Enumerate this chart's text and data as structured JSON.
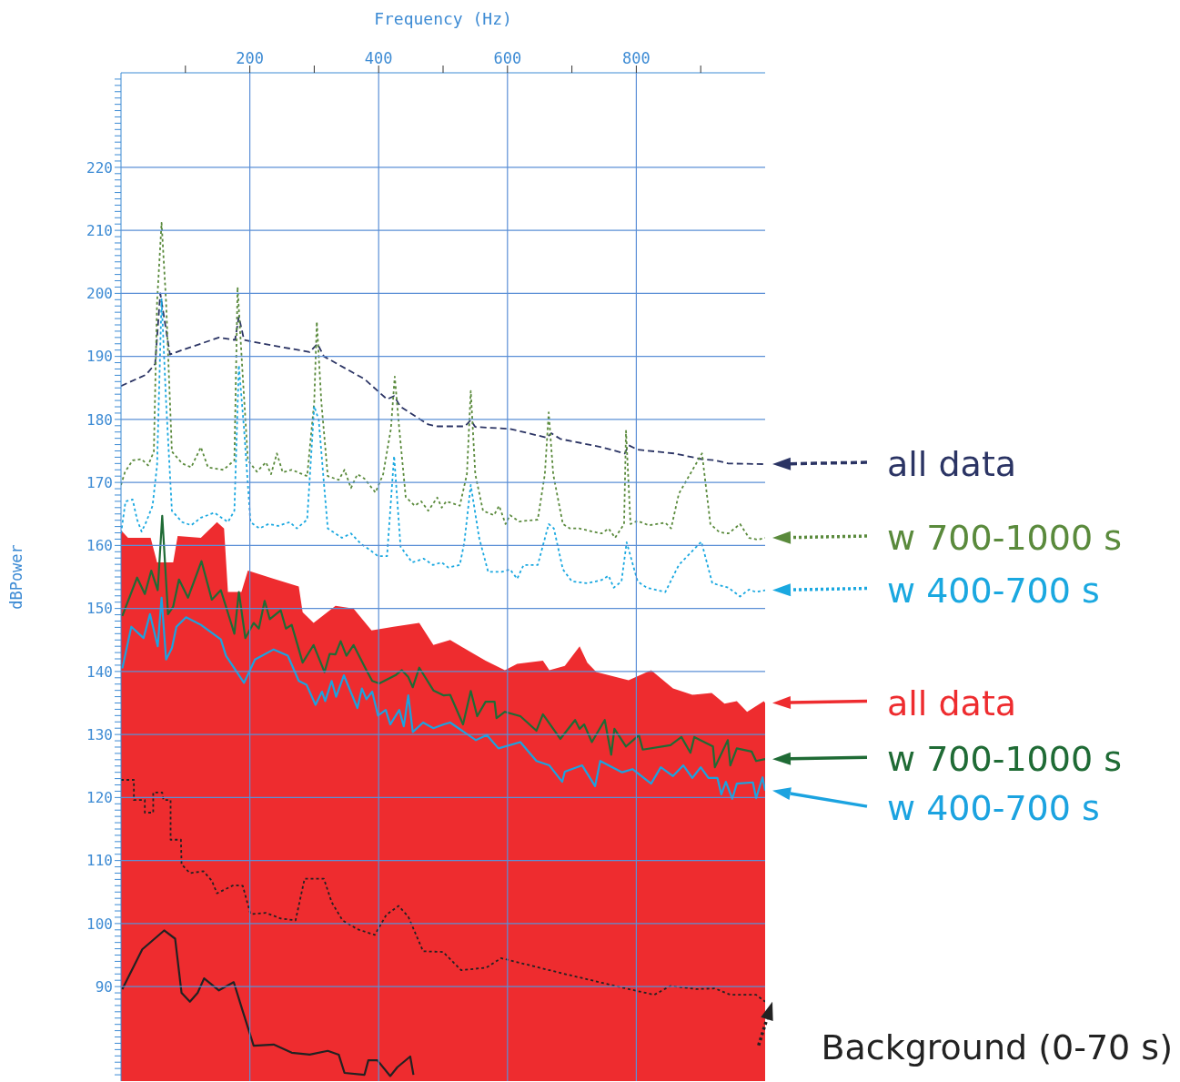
{
  "chart_data": {
    "type": "line",
    "legend": "right",
    "xlabel": "Frequency (Hz)",
    "ylabel": "dBPower",
    "xlim": [
      0,
      1000
    ],
    "ylim": [
      75,
      235
    ],
    "grid": true,
    "xticks": [
      {
        "value": 100,
        "label": null
      },
      200,
      {
        "value": 300,
        "label": null
      },
      400,
      {
        "value": 500,
        "label": null
      },
      600,
      {
        "value": 700,
        "label": null
      },
      800,
      {
        "value": 900,
        "label": null
      }
    ],
    "yticks": [
      {
        "value": 76,
        "label": null
      },
      {
        "value": 77,
        "label": null
      },
      {
        "value": 78,
        "label": null
      },
      {
        "value": 79,
        "label": null
      },
      {
        "value": 80,
        "label": null
      },
      {
        "value": 81,
        "label": null
      },
      {
        "value": 82,
        "label": null
      },
      {
        "value": 83,
        "label": null
      },
      {
        "value": 84,
        "label": null
      },
      {
        "value": 85,
        "label": null
      },
      {
        "value": 86,
        "label": null
      },
      {
        "value": 87,
        "label": null
      },
      {
        "value": 88,
        "label": null
      },
      {
        "value": 89,
        "label": null
      },
      90,
      {
        "value": 91,
        "label": null
      },
      {
        "value": 92,
        "label": null
      },
      {
        "value": 93,
        "label": null
      },
      {
        "value": 94,
        "label": null
      },
      {
        "value": 95,
        "label": null
      },
      {
        "value": 96,
        "label": null
      },
      {
        "value": 97,
        "label": null
      },
      {
        "value": 98,
        "label": null
      },
      {
        "value": 99,
        "label": null
      },
      100,
      {
        "value": 101,
        "label": null
      },
      {
        "value": 102,
        "label": null
      },
      {
        "value": 103,
        "label": null
      },
      {
        "value": 104,
        "label": null
      },
      {
        "value": 105,
        "label": null
      },
      {
        "value": 106,
        "label": null
      },
      {
        "value": 107,
        "label": null
      },
      {
        "value": 108,
        "label": null
      },
      {
        "value": 109,
        "label": null
      },
      110,
      {
        "value": 111,
        "label": null
      },
      {
        "value": 112,
        "label": null
      },
      {
        "value": 113,
        "label": null
      },
      {
        "value": 114,
        "label": null
      },
      {
        "value": 115,
        "label": null
      },
      {
        "value": 116,
        "label": null
      },
      {
        "value": 117,
        "label": null
      },
      {
        "value": 118,
        "label": null
      },
      {
        "value": 119,
        "label": null
      },
      120,
      {
        "value": 121,
        "label": null
      },
      {
        "value": 122,
        "label": null
      },
      {
        "value": 123,
        "label": null
      },
      {
        "value": 124,
        "label": null
      },
      {
        "value": 125,
        "label": null
      },
      {
        "value": 126,
        "label": null
      },
      {
        "value": 127,
        "label": null
      },
      {
        "value": 128,
        "label": null
      },
      {
        "value": 129,
        "label": null
      },
      130,
      {
        "value": 131,
        "label": null
      },
      {
        "value": 132,
        "label": null
      },
      {
        "value": 133,
        "label": null
      },
      {
        "value": 134,
        "label": null
      },
      {
        "value": 135,
        "label": null
      },
      {
        "value": 136,
        "label": null
      },
      {
        "value": 137,
        "label": null
      },
      {
        "value": 138,
        "label": null
      },
      {
        "value": 139,
        "label": null
      },
      140,
      {
        "value": 141,
        "label": null
      },
      {
        "value": 142,
        "label": null
      },
      {
        "value": 143,
        "label": null
      },
      {
        "value": 144,
        "label": null
      },
      {
        "value": 145,
        "label": null
      },
      {
        "value": 146,
        "label": null
      },
      {
        "value": 147,
        "label": null
      },
      {
        "value": 148,
        "label": null
      },
      {
        "value": 149,
        "label": null
      },
      150,
      {
        "value": 151,
        "label": null
      },
      {
        "value": 152,
        "label": null
      },
      {
        "value": 153,
        "label": null
      },
      {
        "value": 154,
        "label": null
      },
      {
        "value": 155,
        "label": null
      },
      {
        "value": 156,
        "label": null
      },
      {
        "value": 157,
        "label": null
      },
      {
        "value": 158,
        "label": null
      },
      {
        "value": 159,
        "label": null
      },
      160,
      {
        "value": 161,
        "label": null
      },
      {
        "value": 162,
        "label": null
      },
      {
        "value": 163,
        "label": null
      },
      {
        "value": 164,
        "label": null
      },
      {
        "value": 165,
        "label": null
      },
      {
        "value": 166,
        "label": null
      },
      {
        "value": 167,
        "label": null
      },
      {
        "value": 168,
        "label": null
      },
      {
        "value": 169,
        "label": null
      },
      170,
      {
        "value": 171,
        "label": null
      },
      {
        "value": 172,
        "label": null
      },
      {
        "value": 173,
        "label": null
      },
      {
        "value": 174,
        "label": null
      },
      {
        "value": 175,
        "label": null
      },
      {
        "value": 176,
        "label": null
      },
      {
        "value": 177,
        "label": null
      },
      {
        "value": 178,
        "label": null
      },
      {
        "value": 179,
        "label": null
      },
      180,
      {
        "value": 181,
        "label": null
      },
      {
        "value": 182,
        "label": null
      },
      {
        "value": 183,
        "label": null
      },
      {
        "value": 184,
        "label": null
      },
      {
        "value": 185,
        "label": null
      },
      {
        "value": 186,
        "label": null
      },
      {
        "value": 187,
        "label": null
      },
      {
        "value": 188,
        "label": null
      },
      {
        "value": 189,
        "label": null
      },
      190,
      {
        "value": 191,
        "label": null
      },
      {
        "value": 192,
        "label": null
      },
      {
        "value": 193,
        "label": null
      },
      {
        "value": 194,
        "label": null
      },
      {
        "value": 195,
        "label": null
      },
      {
        "value": 196,
        "label": null
      },
      {
        "value": 197,
        "label": null
      },
      {
        "value": 198,
        "label": null
      },
      {
        "value": 199,
        "label": null
      },
      200,
      {
        "value": 201,
        "label": null
      },
      {
        "value": 202,
        "label": null
      },
      {
        "value": 203,
        "label": null
      },
      {
        "value": 204,
        "label": null
      },
      {
        "value": 205,
        "label": null
      },
      {
        "value": 206,
        "label": null
      },
      {
        "value": 207,
        "label": null
      },
      {
        "value": 208,
        "label": null
      },
      {
        "value": 209,
        "label": null
      },
      210,
      {
        "value": 211,
        "label": null
      },
      {
        "value": 212,
        "label": null
      },
      {
        "value": 213,
        "label": null
      },
      {
        "value": 214,
        "label": null
      },
      {
        "value": 215,
        "label": null
      },
      {
        "value": 216,
        "label": null
      },
      {
        "value": 217,
        "label": null
      },
      {
        "value": 218,
        "label": null
      },
      {
        "value": 219,
        "label": null
      },
      220,
      {
        "value": 221,
        "label": null
      },
      {
        "value": 222,
        "label": null
      },
      {
        "value": 223,
        "label": null
      },
      {
        "value": 224,
        "label": null
      },
      {
        "value": 225,
        "label": null
      },
      {
        "value": 226,
        "label": null
      },
      {
        "value": 227,
        "label": null
      },
      {
        "value": 228,
        "label": null
      },
      {
        "value": 229,
        "label": null
      },
      {
        "value": 230,
        "label": null
      },
      {
        "value": 231,
        "label": null
      },
      {
        "value": 232,
        "label": null
      },
      {
        "value": 233,
        "label": null
      },
      {
        "value": 234,
        "label": null
      }
    ],
    "series": [
      {
        "name": "all data",
        "type": "area",
        "color": "#ee2c2f",
        "x": [
          0,
          11,
          46,
          56,
          81,
          88,
          124,
          149,
          160,
          166,
          187,
          197,
          237,
          276,
          282,
          299,
          333,
          361,
          389,
          423,
          463,
          485,
          511,
          541,
          566,
          596,
          615,
          655,
          665,
          689,
          712,
          724,
          738,
          788,
          823,
          857,
          887,
          917,
          937,
          956,
          972,
          998,
          1000
        ],
        "values": [
          162.4,
          161.2,
          161.2,
          157.3,
          157.3,
          161.5,
          161.2,
          163.7,
          162.7,
          152.6,
          152.6,
          156,
          154.7,
          153.5,
          149.4,
          147.7,
          150.4,
          150,
          146.5,
          147.1,
          147.7,
          144.2,
          145,
          143.2,
          141.7,
          140.2,
          141.2,
          141.7,
          140.2,
          140.9,
          144,
          141.4,
          139.9,
          138.6,
          140.2,
          137.3,
          136.3,
          136.6,
          134.9,
          135.3,
          133.6,
          135.3,
          135
        ]
      },
      {
        "name": "all data",
        "line_style": "dashed",
        "color": "#2b3464",
        "x": [
          0,
          39,
          53,
          61,
          76,
          95,
          152,
          177,
          183,
          191,
          237,
          293,
          305,
          315,
          378,
          413,
          424,
          434,
          477,
          491,
          534,
          543,
          550,
          604,
          661,
          668,
          682,
          746,
          782,
          788,
          802,
          859,
          901,
          923,
          943,
          1000
        ],
        "values": [
          185.3,
          187.1,
          188.8,
          200,
          190.3,
          191,
          193,
          192.6,
          196.3,
          192.6,
          191.7,
          190.7,
          192,
          190,
          186.4,
          183.2,
          183.7,
          182,
          179.2,
          178.9,
          178.9,
          179.9,
          178.8,
          178.5,
          177.1,
          177.8,
          176.9,
          175.6,
          174.6,
          175.9,
          175.2,
          174.6,
          173.7,
          173.5,
          173,
          172.9
        ]
      },
      {
        "name": "w 700-1000 s",
        "line_style": "dotted",
        "color": "#5a8a3c",
        "x": [
          0,
          6,
          18,
          32,
          42,
          51,
          56,
          63,
          70,
          79,
          95,
          109,
          124,
          135,
          159,
          176,
          181,
          188,
          197,
          211,
          225,
          233,
          242,
          251,
          265,
          289,
          300,
          304,
          311,
          321,
          338,
          347,
          357,
          367,
          378,
          395,
          407,
          419,
          425,
          432,
          442,
          456,
          466,
          477,
          491,
          498,
          505,
          526,
          537,
          543,
          550,
          562,
          579,
          587,
          597,
          604,
          618,
          647,
          658,
          664,
          671,
          686,
          697,
          711,
          732,
          746,
          757,
          767,
          781,
          784,
          791,
          802,
          819,
          845,
          854,
          866,
          902,
          915,
          929,
          943,
          961,
          975,
          989,
          1000
        ],
        "values": [
          169.6,
          171.6,
          173.5,
          173.7,
          172.7,
          174.9,
          198.6,
          211.2,
          198.6,
          174.9,
          173,
          172.4,
          175.6,
          172.4,
          172,
          173.5,
          201,
          188.6,
          173.5,
          171.7,
          173.2,
          171.3,
          174.6,
          171.6,
          172,
          171,
          182.8,
          195.5,
          182.8,
          171,
          170.4,
          172,
          169.1,
          171.3,
          170.6,
          168.4,
          171.3,
          178.5,
          186.8,
          178.5,
          167.7,
          166.3,
          167,
          165.5,
          167.6,
          166,
          167,
          166.3,
          171.3,
          184.5,
          171.3,
          165.5,
          164.8,
          166.3,
          163.4,
          164.8,
          163.8,
          164.1,
          171.3,
          181.1,
          171.3,
          163.4,
          162.7,
          162.7,
          162.2,
          161.9,
          162.7,
          161.2,
          163.4,
          178.2,
          163.4,
          163.9,
          163.2,
          163.6,
          162.7,
          168.2,
          174.6,
          163.4,
          162.1,
          161.9,
          163.4,
          161.2,
          160.9,
          161.2
        ]
      },
      {
        "name": "w 400-700 s",
        "line_style": "dotted",
        "color": "#1aa8e0",
        "x": [
          0,
          7,
          18,
          25,
          32,
          39,
          49,
          56,
          63,
          70,
          79,
          95,
          109,
          124,
          145,
          166,
          176,
          183,
          191,
          201,
          215,
          229,
          244,
          262,
          273,
          289,
          300,
          307,
          315,
          321,
          343,
          357,
          373,
          385,
          399,
          413,
          424,
          434,
          452,
          470,
          484,
          498,
          508,
          526,
          533,
          543,
          556,
          570,
          591,
          604,
          615,
          625,
          647,
          664,
          672,
          686,
          700,
          724,
          746,
          757,
          765,
          777,
          785,
          791,
          802,
          816,
          845,
          866,
          901,
          918,
          943,
          961,
          975,
          986,
          1000
        ],
        "values": [
          161.9,
          167,
          167.3,
          164.1,
          162.2,
          163.7,
          166.3,
          172.7,
          199.1,
          182.8,
          165.5,
          163.7,
          163.2,
          164.4,
          165.2,
          163.7,
          165.5,
          188.6,
          178.5,
          163.7,
          162.7,
          163.4,
          163.1,
          163.7,
          162.7,
          164.1,
          182.1,
          179.9,
          169.9,
          162.7,
          161.2,
          161.9,
          160.2,
          159.4,
          158.3,
          158.3,
          174.2,
          159.8,
          157.3,
          157.9,
          156.9,
          157.3,
          156.5,
          156.9,
          160.5,
          169.6,
          161.2,
          155.8,
          155.8,
          156.2,
          154.7,
          156.9,
          156.9,
          163.4,
          162.7,
          156.2,
          154.3,
          154,
          154.5,
          155.2,
          153.3,
          154.3,
          160.5,
          158.3,
          154.3,
          153.3,
          152.6,
          156.9,
          160.6,
          154,
          153.3,
          151.9,
          153,
          152.6,
          152.9
        ]
      },
      {
        "name": "w 700-1000 s",
        "color": "#1f6b35",
        "x": [
          2,
          25,
          37,
          47,
          57,
          64,
          73,
          81,
          90,
          104,
          125,
          141,
          155,
          176,
          183,
          193,
          206,
          214,
          223,
          231,
          248,
          256,
          265,
          282,
          299,
          316,
          324,
          333,
          341,
          350,
          361,
          381,
          390,
          401,
          426,
          436,
          446,
          453,
          463,
          485,
          501,
          511,
          531,
          543,
          553,
          566,
          580,
          583,
          596,
          620,
          645,
          655,
          682,
          705,
          712,
          719,
          731,
          751,
          761,
          766,
          784,
          804,
          810,
          853,
          870,
          884,
          890,
          919,
          922,
          942,
          946,
          956,
          979,
          986,
          1000
        ],
        "values": [
          148.8,
          154.9,
          152.3,
          156,
          152.9,
          164.7,
          149.1,
          150.3,
          154.6,
          151.7,
          157.5,
          151.4,
          152.9,
          146,
          152.6,
          145.3,
          147.7,
          146.8,
          151.2,
          148.3,
          149.7,
          146.8,
          147.4,
          141.4,
          144.2,
          139.9,
          142.8,
          142.7,
          144.8,
          142.5,
          144.2,
          140.2,
          138.5,
          138.1,
          139.4,
          140.2,
          139.1,
          137.5,
          140.6,
          137,
          136.2,
          136.3,
          131.6,
          136.9,
          132.9,
          135.2,
          135.2,
          132.6,
          133.6,
          132.9,
          130.6,
          133.2,
          129.3,
          132.3,
          130.9,
          131.6,
          128.8,
          132.3,
          126.8,
          130.9,
          128.1,
          129.9,
          127.6,
          128.3,
          129.6,
          127.1,
          129.6,
          128.1,
          124.8,
          129.1,
          125.1,
          127.8,
          127.3,
          125.8,
          126.1
        ]
      },
      {
        "name": "w 400-700 s",
        "color": "#1ba3e0",
        "x": [
          2,
          16,
          35,
          45,
          57,
          63,
          70,
          79,
          86,
          101,
          124,
          155,
          163,
          191,
          208,
          237,
          259,
          276,
          288,
          302,
          312,
          317,
          327,
          334,
          346,
          367,
          374,
          381,
          390,
          399,
          411,
          418,
          432,
          439,
          446,
          453,
          469,
          485,
          501,
          511,
          551,
          568,
          586,
          620,
          645,
          665,
          685,
          689,
          716,
          736,
          744,
          778,
          794,
          823,
          838,
          857,
          873,
          887,
          900,
          912,
          926,
          932,
          939,
          949,
          956,
          981,
          986,
          996,
          1000
        ],
        "values": [
          140.5,
          147.1,
          145.3,
          149.1,
          144,
          151.7,
          141.9,
          143.7,
          147.1,
          148.6,
          147.4,
          145.1,
          142.5,
          138.2,
          141.9,
          143.5,
          142.5,
          138.5,
          137.9,
          134.7,
          136.8,
          135.3,
          138.5,
          136,
          139.4,
          134.2,
          137.3,
          135.6,
          136.8,
          133,
          133.9,
          131.6,
          133.9,
          131.3,
          136.2,
          130.4,
          131.9,
          131,
          131.6,
          131.9,
          129.1,
          129.9,
          127.8,
          128.8,
          125.8,
          125.1,
          122.5,
          124.1,
          125.1,
          121.8,
          125.8,
          124,
          124.5,
          122.2,
          124.8,
          123.4,
          125.1,
          123.1,
          124.8,
          123.1,
          123.1,
          120.5,
          122.5,
          119.8,
          122.2,
          122.4,
          119.9,
          123.2,
          121.1
        ]
      },
      {
        "name": "Background (0-70 s)",
        "line_style": "dotted",
        "color": "#222222",
        "x": [
          0,
          20,
          20,
          37,
          37,
          50,
          50,
          64,
          66,
          77,
          77,
          93,
          94,
          107,
          128,
          141,
          149,
          175,
          189,
          201,
          225,
          248,
          271,
          285,
          315,
          327,
          344,
          367,
          394,
          412,
          431,
          446,
          469,
          500,
          528,
          567,
          590,
          689,
          788,
          828,
          853,
          893,
          922,
          946,
          986,
          1000
        ],
        "values": [
          122.8,
          122.8,
          119.6,
          119.6,
          117.6,
          117.6,
          120.8,
          120.8,
          119.6,
          119.6,
          113.3,
          113.3,
          109.4,
          108,
          108.3,
          106.8,
          104.8,
          106.1,
          106,
          101.5,
          101.7,
          100.8,
          100.5,
          107.1,
          107.1,
          103.4,
          100.5,
          99.1,
          98.2,
          101.4,
          102.8,
          101.1,
          95.6,
          95.5,
          92.6,
          93,
          94.5,
          92,
          89.6,
          88.7,
          90.1,
          89.6,
          89.7,
          88.7,
          88.7,
          87.6
        ]
      },
      {
        "color": "#222222",
        "x": [
          2,
          33,
          67,
          84,
          94,
          107,
          119,
          129,
          152,
          175,
          189,
          206,
          237,
          265,
          293,
          321,
          338,
          347,
          378,
          384,
          398,
          418,
          429,
          449,
          454
        ],
        "values": [
          89.6,
          95.9,
          98.9,
          97.6,
          89,
          87.6,
          89,
          91.3,
          89.4,
          90.7,
          86.1,
          80.6,
          80.8,
          79.5,
          79.2,
          79.8,
          79.2,
          76.3,
          76,
          78.3,
          78.3,
          75.8,
          77.2,
          78.9,
          76
        ]
      }
    ]
  }
}
